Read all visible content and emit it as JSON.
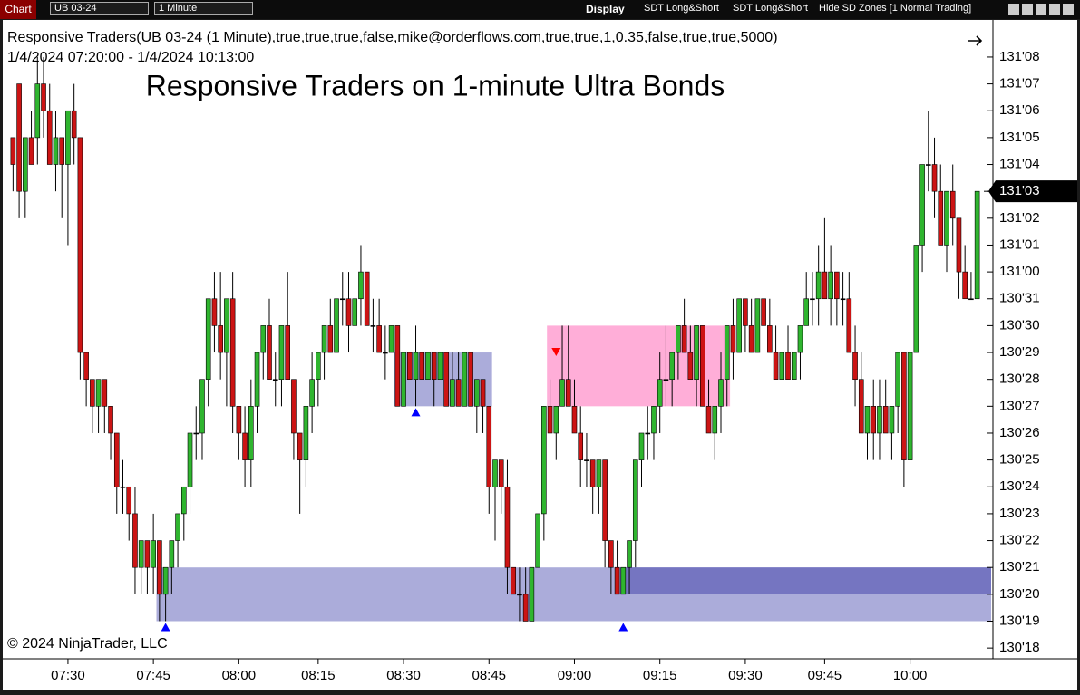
{
  "toolbar": {
    "tab": "Chart",
    "instrument": "UB 03-24",
    "interval": "1 Minute",
    "display": "Display",
    "buttons": [
      "SDT Long&Short",
      "SDT Long&Short",
      "Hide SD Zones [1 Normal Trading]"
    ]
  },
  "chart_data": {
    "type": "candlestick",
    "indicator": "Responsive Traders(UB 03-24 (1 Minute),true,true,true,false,mike@orderflows.com,true,true,1,0.35,false,true,true,5000)",
    "date_range": "1/4/2024 07:20:00 - 1/4/2024 10:13:00",
    "title": "Responsive Traders on 1-minute Ultra Bonds",
    "copyright": "© 2024 NinjaTrader, LLC",
    "up_color": "#2fb52f",
    "down_color": "#cc1414",
    "grid": false,
    "categories": [
      null,
      null,
      null,
      null,
      null,
      null,
      null,
      null,
      null,
      "07:30",
      null,
      null,
      null,
      null,
      null,
      null,
      null,
      null,
      null,
      null,
      null,
      null,
      null,
      "07:45",
      null,
      null,
      null,
      null,
      null,
      null,
      null,
      null,
      null,
      null,
      null,
      null,
      null,
      "08:00",
      null,
      null,
      null,
      null,
      null,
      null,
      null,
      null,
      null,
      null,
      null,
      null,
      "08:15",
      null,
      null,
      null,
      null,
      null,
      null,
      null,
      null,
      null,
      null,
      null,
      null,
      null,
      "08:30",
      null,
      null,
      null,
      null,
      null,
      null,
      null,
      null,
      null,
      null,
      null,
      null,
      null,
      "08:45",
      null,
      null,
      null,
      null,
      null,
      null,
      null,
      null,
      null,
      null,
      null,
      null,
      null,
      "09:00",
      null,
      null,
      null,
      null,
      null,
      null,
      null,
      null,
      null,
      null,
      null,
      null,
      null,
      "09:15",
      null,
      null,
      null,
      null,
      null,
      null,
      null,
      null,
      null,
      null,
      null,
      null,
      null,
      "09:30",
      null,
      null,
      null,
      null,
      null,
      null,
      null,
      null,
      null,
      null,
      null,
      null,
      "09:45",
      null,
      null,
      null,
      null,
      null,
      null,
      null,
      null,
      null,
      null,
      null,
      null,
      null,
      "10:00",
      null,
      null,
      null,
      null,
      null,
      null,
      null,
      null,
      null,
      null,
      null
    ],
    "open": [
      131.15625,
      131.21875,
      131.09375,
      131.15625,
      131.15625,
      131.21875,
      131.1875,
      131.125,
      131.15625,
      131.125,
      131.1875,
      131.15625,
      130.90625,
      130.875,
      130.84375,
      130.875,
      130.84375,
      130.8125,
      130.75,
      130.75,
      130.71875,
      130.65625,
      130.6875,
      130.65625,
      130.6875,
      130.625,
      130.65625,
      130.6875,
      130.71875,
      130.75,
      130.8125,
      130.8125,
      130.875,
      130.96875,
      130.9375,
      130.90625,
      130.96875,
      130.84375,
      130.8125,
      130.78125,
      130.84375,
      130.90625,
      130.9375,
      130.875,
      130.875,
      130.9375,
      130.875,
      130.8125,
      130.78125,
      130.84375,
      130.875,
      130.90625,
      130.9375,
      130.90625,
      130.96875,
      130.96875,
      130.9375,
      130.96875,
      131,
      130.9375,
      130.9375,
      130.90625,
      130.90625,
      130.9375,
      130.84375,
      130.90625,
      130.875,
      130.90625,
      130.875,
      130.90625,
      130.875,
      130.90625,
      130.84375,
      130.875,
      130.84375,
      130.90625,
      130.84375,
      130.875,
      130.84375,
      130.75,
      130.78125,
      130.75,
      130.65625,
      130.625,
      130.625,
      130.59375,
      130.65625,
      130.71875,
      130.84375,
      130.8125,
      130.84375,
      130.875,
      130.84375,
      130.8125,
      130.78125,
      130.78125,
      130.75,
      130.78125,
      130.6875,
      130.65625,
      130.625,
      130.65625,
      130.6875,
      130.78125,
      130.8125,
      130.8125,
      130.84375,
      130.875,
      130.875,
      130.90625,
      130.9375,
      130.90625,
      130.875,
      130.9375,
      130.84375,
      130.8125,
      130.84375,
      130.875,
      130.9375,
      130.90625,
      130.96875,
      130.9375,
      130.90625,
      130.96875,
      130.9375,
      130.90625,
      130.875,
      130.90625,
      130.875,
      130.90625,
      130.9375,
      130.96875,
      130.96875,
      131,
      130.96875,
      131,
      130.96875,
      130.96875,
      130.90625,
      130.875,
      130.8125,
      130.84375,
      130.8125,
      130.84375,
      130.8125,
      130.84375,
      130.90625,
      130.78125,
      130.90625,
      131.03125,
      131.125,
      131.125,
      131.09375,
      131.03125,
      131.09375,
      131.0625,
      131,
      130.96875,
      130.96875
    ],
    "high": [
      131.15625,
      131.21875,
      131.15625,
      131.1875,
      131.25,
      131.25,
      131.21875,
      131.1875,
      131.15625,
      131.1875,
      131.21875,
      131.15625,
      130.90625,
      130.875,
      130.875,
      130.875,
      130.84375,
      130.8125,
      130.78125,
      130.75,
      130.75,
      130.6875,
      130.6875,
      130.71875,
      130.6875,
      130.65625,
      130.6875,
      130.71875,
      130.75,
      130.8125,
      130.84375,
      130.875,
      130.96875,
      131,
      131,
      130.96875,
      131,
      130.84375,
      130.84375,
      130.875,
      130.90625,
      130.9375,
      130.96875,
      130.90625,
      130.9375,
      131,
      130.875,
      130.8125,
      130.84375,
      130.90625,
      130.90625,
      130.9375,
      130.96875,
      130.96875,
      131,
      131,
      130.96875,
      131.03125,
      131,
      130.96875,
      130.96875,
      130.9375,
      130.9375,
      130.9375,
      130.90625,
      130.90625,
      130.9375,
      130.90625,
      130.90625,
      130.90625,
      130.90625,
      130.90625,
      130.90625,
      130.90625,
      130.90625,
      130.90625,
      130.875,
      130.875,
      130.84375,
      130.78125,
      130.78125,
      130.78125,
      130.65625,
      130.65625,
      130.65625,
      130.65625,
      130.71875,
      130.84375,
      130.875,
      130.84375,
      130.9375,
      130.9375,
      130.875,
      130.84375,
      130.8125,
      130.78125,
      130.78125,
      130.78125,
      130.6875,
      130.6875,
      130.65625,
      130.6875,
      130.78125,
      130.8125,
      130.84375,
      130.84375,
      130.90625,
      130.9375,
      130.90625,
      130.9375,
      130.96875,
      130.9375,
      130.9375,
      130.9375,
      130.875,
      130.84375,
      130.90625,
      130.9375,
      130.96875,
      130.96875,
      130.96875,
      130.96875,
      130.96875,
      130.96875,
      130.96875,
      130.9375,
      130.90625,
      130.9375,
      130.90625,
      130.9375,
      131,
      131,
      131.03125,
      131.0625,
      131.03125,
      131,
      131,
      131,
      130.9375,
      130.90625,
      130.84375,
      130.875,
      130.875,
      130.875,
      130.84375,
      130.90625,
      130.90625,
      130.90625,
      131.03125,
      131.125,
      131.1875,
      131.15625,
      131.125,
      131.09375,
      131.125,
      131.0625,
      131.03125,
      131,
      131.09375
    ],
    "low": [
      131.09375,
      131.0625,
      131.0625,
      131.125,
      131.125,
      131.15625,
      131.125,
      131.09375,
      131.0625,
      131.03125,
      131.125,
      130.875,
      130.84375,
      130.8125,
      130.8125,
      130.8125,
      130.78125,
      130.71875,
      130.71875,
      130.6875,
      130.625,
      130.625,
      130.625,
      130.625,
      130.59375,
      130.59375,
      130.625,
      130.65625,
      130.6875,
      130.71875,
      130.78125,
      130.78125,
      130.84375,
      130.90625,
      130.875,
      130.84375,
      130.8125,
      130.78125,
      130.75,
      130.75,
      130.8125,
      130.875,
      130.875,
      130.84375,
      130.84375,
      130.875,
      130.78125,
      130.71875,
      130.75,
      130.8125,
      130.84375,
      130.875,
      130.90625,
      130.90625,
      130.9375,
      130.90625,
      130.9375,
      130.9375,
      130.9375,
      130.90625,
      130.90625,
      130.875,
      130.90625,
      130.84375,
      130.84375,
      130.875,
      130.84375,
      130.875,
      130.875,
      130.84375,
      130.875,
      130.84375,
      130.84375,
      130.84375,
      130.84375,
      130.84375,
      130.8125,
      130.8125,
      130.71875,
      130.6875,
      130.71875,
      130.625,
      130.625,
      130.59375,
      130.59375,
      130.59375,
      130.65625,
      130.6875,
      130.8125,
      130.78125,
      130.84375,
      130.84375,
      130.8125,
      130.75,
      130.75,
      130.71875,
      130.71875,
      130.65625,
      130.625,
      130.625,
      130.625,
      130.625,
      130.65625,
      130.75,
      130.78125,
      130.78125,
      130.8125,
      130.84375,
      130.84375,
      130.875,
      130.90625,
      130.875,
      130.84375,
      130.84375,
      130.8125,
      130.78125,
      130.8125,
      130.84375,
      130.875,
      130.90625,
      130.90625,
      130.90625,
      130.90625,
      130.9375,
      130.90625,
      130.875,
      130.875,
      130.875,
      130.875,
      130.875,
      130.9375,
      130.9375,
      130.9375,
      130.96875,
      130.9375,
      130.9375,
      130.9375,
      130.90625,
      130.84375,
      130.8125,
      130.78125,
      130.78125,
      130.78125,
      130.8125,
      130.78125,
      130.8125,
      130.75,
      130.78125,
      130.90625,
      131,
      131.09375,
      131.0625,
      131.03125,
      131,
      131.03125,
      130.96875,
      130.96875,
      130.96875,
      130.96875
    ],
    "close": [
      131.125,
      131.09375,
      131.15625,
      131.125,
      131.21875,
      131.1875,
      131.125,
      131.15625,
      131.125,
      131.1875,
      131.15625,
      130.90625,
      130.875,
      130.84375,
      130.875,
      130.84375,
      130.8125,
      130.75,
      130.75,
      130.71875,
      130.65625,
      130.6875,
      130.65625,
      130.6875,
      130.625,
      130.65625,
      130.6875,
      130.71875,
      130.75,
      130.8125,
      130.8125,
      130.875,
      130.96875,
      130.9375,
      130.90625,
      130.96875,
      130.84375,
      130.8125,
      130.78125,
      130.84375,
      130.90625,
      130.9375,
      130.875,
      130.875,
      130.9375,
      130.875,
      130.8125,
      130.78125,
      130.84375,
      130.875,
      130.90625,
      130.9375,
      130.90625,
      130.96875,
      130.96875,
      130.9375,
      130.96875,
      131,
      130.9375,
      130.9375,
      130.90625,
      130.90625,
      130.9375,
      130.84375,
      130.90625,
      130.875,
      130.90625,
      130.875,
      130.90625,
      130.875,
      130.90625,
      130.84375,
      130.875,
      130.84375,
      130.90625,
      130.84375,
      130.875,
      130.84375,
      130.75,
      130.78125,
      130.75,
      130.65625,
      130.625,
      130.625,
      130.59375,
      130.65625,
      130.71875,
      130.84375,
      130.8125,
      130.84375,
      130.875,
      130.84375,
      130.8125,
      130.78125,
      130.78125,
      130.75,
      130.78125,
      130.6875,
      130.65625,
      130.625,
      130.65625,
      130.6875,
      130.78125,
      130.8125,
      130.8125,
      130.84375,
      130.875,
      130.875,
      130.90625,
      130.9375,
      130.90625,
      130.875,
      130.9375,
      130.84375,
      130.8125,
      130.84375,
      130.875,
      130.9375,
      130.90625,
      130.96875,
      130.9375,
      130.90625,
      130.96875,
      130.9375,
      130.90625,
      130.875,
      130.90625,
      130.875,
      130.90625,
      130.9375,
      130.96875,
      130.96875,
      131,
      130.96875,
      131,
      130.96875,
      130.96875,
      130.90625,
      130.875,
      130.8125,
      130.84375,
      130.8125,
      130.84375,
      130.8125,
      130.84375,
      130.90625,
      130.78125,
      130.90625,
      131.03125,
      131.125,
      131.125,
      131.09375,
      131.03125,
      131.09375,
      131.0625,
      131,
      130.96875,
      130.96875,
      131.09375
    ],
    "zones": [
      {
        "start": 24,
        "low": 130.59375,
        "high": 130.65625,
        "color": "#a6a8d8"
      },
      {
        "start": 100,
        "low": 130.625,
        "high": 130.65625,
        "color": "#7272c0"
      },
      {
        "start": 63,
        "end": 78,
        "low": 130.84375,
        "high": 130.90625,
        "color": "#a6a8d8"
      },
      {
        "start": 88,
        "end": 117,
        "low": 130.84375,
        "high": 130.9375,
        "color": "#ffaad6"
      }
    ],
    "markers": [
      {
        "index": 25,
        "price": 130.59375,
        "direction": "up",
        "color": "#0000ff"
      },
      {
        "index": 66,
        "price": 130.84375,
        "direction": "up",
        "color": "#0000ff"
      },
      {
        "index": 100,
        "price": 130.59375,
        "direction": "up",
        "color": "#0000ff"
      },
      {
        "index": 89,
        "price": 130.90625,
        "direction": "down",
        "color": "#ff0000"
      }
    ],
    "ylim": [
      130.55,
      131.29
    ],
    "yticks": [
      {
        "value": 130.5625,
        "label": "130'18"
      },
      {
        "value": 130.59375,
        "label": "130'19"
      },
      {
        "value": 130.625,
        "label": "130'20"
      },
      {
        "value": 130.65625,
        "label": "130'21"
      },
      {
        "value": 130.6875,
        "label": "130'22"
      },
      {
        "value": 130.71875,
        "label": "130'23"
      },
      {
        "value": 130.75,
        "label": "130'24"
      },
      {
        "value": 130.78125,
        "label": "130'25"
      },
      {
        "value": 130.8125,
        "label": "130'26"
      },
      {
        "value": 130.84375,
        "label": "130'27"
      },
      {
        "value": 130.875,
        "label": "130'28"
      },
      {
        "value": 130.90625,
        "label": "130'29"
      },
      {
        "value": 130.9375,
        "label": "130'30"
      },
      {
        "value": 130.96875,
        "label": "130'31"
      },
      {
        "value": 131,
        "label": "131'00"
      },
      {
        "value": 131.03125,
        "label": "131'01"
      },
      {
        "value": 131.0625,
        "label": "131'02"
      },
      {
        "value": 131.09375,
        "label": "131'03"
      },
      {
        "value": 131.125,
        "label": "131'04"
      },
      {
        "value": 131.15625,
        "label": "131'05"
      },
      {
        "value": 131.1875,
        "label": "131'06"
      },
      {
        "value": 131.21875,
        "label": "131'07"
      },
      {
        "value": 131.25,
        "label": "131'08"
      }
    ],
    "last_price": {
      "value": 131.09375,
      "label": "131'03"
    }
  }
}
